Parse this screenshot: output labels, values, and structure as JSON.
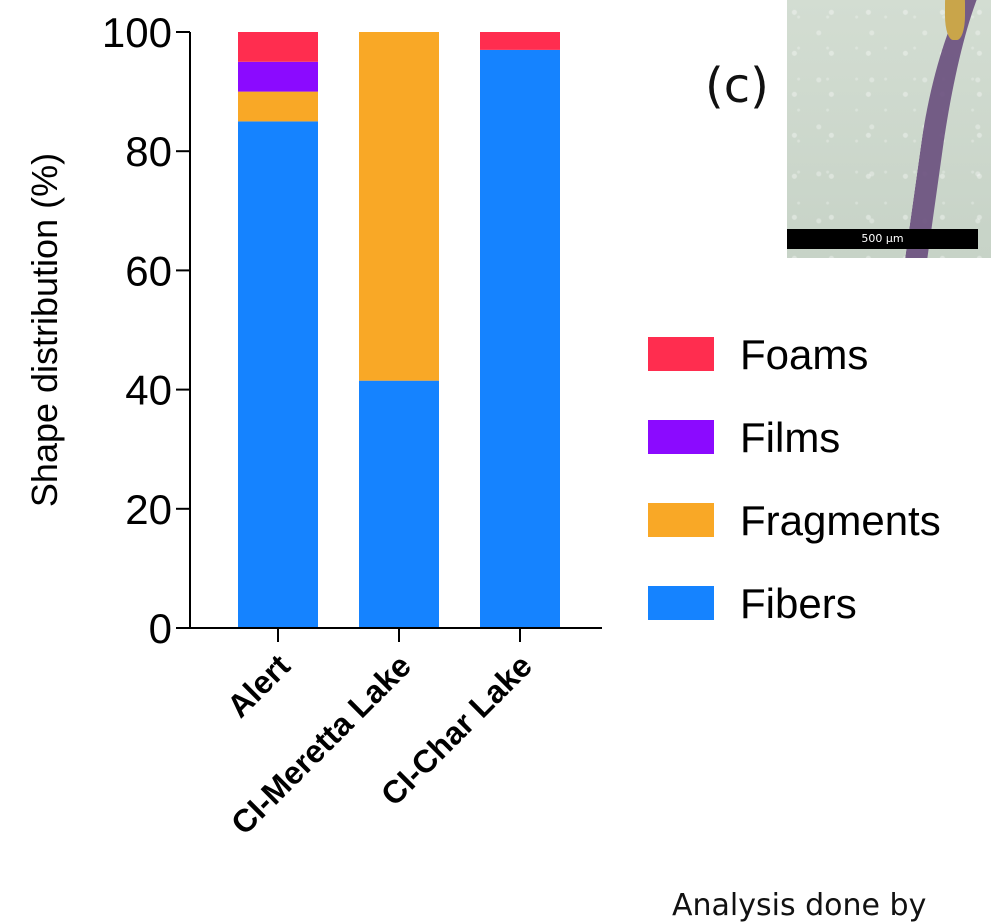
{
  "panel_label": "(c)",
  "micrograph": {
    "scale_label": "500 µm"
  },
  "footer_text": "Analysis done by",
  "chart_data": {
    "type": "bar",
    "stacked": true,
    "categories": [
      "Alert",
      "CI-Meretta Lake",
      "CI-Char Lake"
    ],
    "series": [
      {
        "name": "Fibers",
        "color": "#1583ff",
        "values": [
          85,
          41.5,
          97
        ]
      },
      {
        "name": "Fragments",
        "color": "#f9a826",
        "values": [
          5,
          58.5,
          0
        ]
      },
      {
        "name": "Films",
        "color": "#8b0aff",
        "values": [
          5,
          0,
          0
        ]
      },
      {
        "name": "Foams",
        "color": "#ff2d4f",
        "values": [
          5,
          0,
          3
        ]
      }
    ],
    "legend_order": [
      "Foams",
      "Films",
      "Fragments",
      "Fibers"
    ],
    "legend_position": "right",
    "ylabel": "Shape distribution (%)",
    "xlabel": "",
    "ylim": [
      0,
      100
    ],
    "yticks": [
      0,
      20,
      40,
      60,
      80,
      100
    ],
    "grid": false
  }
}
